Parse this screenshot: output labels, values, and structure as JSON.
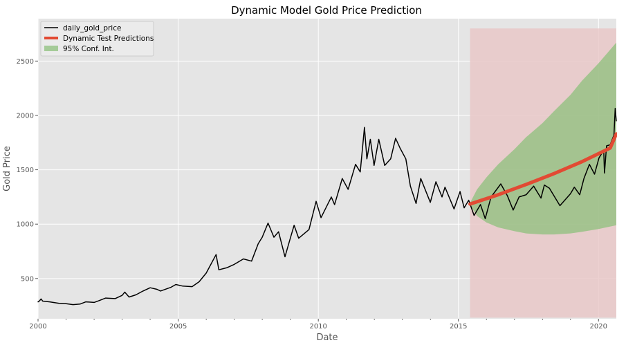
{
  "chart_data": {
    "type": "line",
    "title": "Dynamic Model Gold Price Prediction",
    "xlabel": "Date",
    "ylabel": "Gold Price",
    "xlim": [
      "2000-01-01",
      "2020-08-20"
    ],
    "ylim": [
      130,
      2890
    ],
    "x_ticks": [
      "2000",
      "2005",
      "2010",
      "2015",
      "2020"
    ],
    "y_ticks": [
      500,
      1000,
      1500,
      2000,
      2500
    ],
    "grid": true,
    "legend_position": "top-left",
    "series": [
      {
        "name": "daily_gold_price",
        "kind": "line",
        "color": "#000000",
        "points": [
          [
            "2000-01-01",
            285
          ],
          [
            "2000-01-20",
            295
          ],
          [
            "2000-02-10",
            312
          ],
          [
            "2000-03-01",
            292
          ],
          [
            "2000-06-01",
            285
          ],
          [
            "2000-10-01",
            272
          ],
          [
            "2001-01-01",
            268
          ],
          [
            "2001-04-01",
            260
          ],
          [
            "2001-07-01",
            265
          ],
          [
            "2001-09-15",
            285
          ],
          [
            "2002-01-01",
            280
          ],
          [
            "2002-03-01",
            295
          ],
          [
            "2002-06-01",
            320
          ],
          [
            "2002-10-01",
            315
          ],
          [
            "2003-01-01",
            345
          ],
          [
            "2003-02-05",
            375
          ],
          [
            "2003-04-01",
            330
          ],
          [
            "2003-07-01",
            350
          ],
          [
            "2003-10-01",
            385
          ],
          [
            "2004-01-01",
            415
          ],
          [
            "2004-04-01",
            400
          ],
          [
            "2004-05-15",
            385
          ],
          [
            "2004-10-01",
            420
          ],
          [
            "2004-12-01",
            445
          ],
          [
            "2005-03-01",
            430
          ],
          [
            "2005-07-01",
            425
          ],
          [
            "2005-10-01",
            470
          ],
          [
            "2006-01-01",
            550
          ],
          [
            "2006-05-10",
            720
          ],
          [
            "2006-06-15",
            580
          ],
          [
            "2006-10-01",
            600
          ],
          [
            "2007-01-01",
            630
          ],
          [
            "2007-05-01",
            680
          ],
          [
            "2007-08-15",
            660
          ],
          [
            "2007-11-10",
            820
          ],
          [
            "2008-01-01",
            880
          ],
          [
            "2008-03-17",
            1010
          ],
          [
            "2008-06-01",
            880
          ],
          [
            "2008-08-01",
            930
          ],
          [
            "2008-10-24",
            700
          ],
          [
            "2009-01-01",
            870
          ],
          [
            "2009-02-20",
            990
          ],
          [
            "2009-04-20",
            870
          ],
          [
            "2009-09-01",
            950
          ],
          [
            "2009-12-03",
            1210
          ],
          [
            "2010-02-05",
            1060
          ],
          [
            "2010-06-20",
            1250
          ],
          [
            "2010-08-01",
            1180
          ],
          [
            "2010-11-09",
            1420
          ],
          [
            "2011-01-25",
            1320
          ],
          [
            "2011-05-01",
            1550
          ],
          [
            "2011-07-01",
            1480
          ],
          [
            "2011-08-25",
            1890
          ],
          [
            "2011-09-26",
            1600
          ],
          [
            "2011-11-10",
            1780
          ],
          [
            "2011-12-29",
            1540
          ],
          [
            "2012-02-28",
            1780
          ],
          [
            "2012-05-16",
            1540
          ],
          [
            "2012-08-01",
            1600
          ],
          [
            "2012-10-04",
            1790
          ],
          [
            "2012-12-01",
            1700
          ],
          [
            "2013-02-15",
            1600
          ],
          [
            "2013-04-15",
            1350
          ],
          [
            "2013-06-28",
            1190
          ],
          [
            "2013-08-28",
            1420
          ],
          [
            "2013-12-31",
            1200
          ],
          [
            "2014-03-14",
            1390
          ],
          [
            "2014-06-01",
            1250
          ],
          [
            "2014-07-10",
            1340
          ],
          [
            "2014-11-05",
            1140
          ],
          [
            "2015-01-22",
            1300
          ],
          [
            "2015-03-17",
            1150
          ],
          [
            "2015-05-15",
            1220
          ],
          [
            "2015-07-24",
            1080
          ],
          [
            "2015-10-15",
            1180
          ],
          [
            "2015-12-17",
            1050
          ],
          [
            "2016-03-01",
            1250
          ],
          [
            "2016-07-06",
            1370
          ],
          [
            "2016-10-01",
            1260
          ],
          [
            "2016-12-15",
            1130
          ],
          [
            "2017-03-01",
            1250
          ],
          [
            "2017-06-01",
            1270
          ],
          [
            "2017-09-08",
            1350
          ],
          [
            "2017-12-12",
            1240
          ],
          [
            "2018-01-25",
            1360
          ],
          [
            "2018-04-01",
            1330
          ],
          [
            "2018-08-16",
            1170
          ],
          [
            "2018-12-31",
            1280
          ],
          [
            "2019-02-20",
            1340
          ],
          [
            "2019-05-01",
            1270
          ],
          [
            "2019-06-25",
            1420
          ],
          [
            "2019-09-04",
            1550
          ],
          [
            "2019-11-10",
            1460
          ],
          [
            "2020-01-08",
            1610
          ],
          [
            "2020-03-09",
            1680
          ],
          [
            "2020-03-19",
            1470
          ],
          [
            "2020-04-15",
            1720
          ],
          [
            "2020-06-01",
            1730
          ],
          [
            "2020-07-20",
            1820
          ],
          [
            "2020-08-06",
            2065
          ],
          [
            "2020-08-20",
            1950
          ]
        ]
      },
      {
        "name": "Dynamic Test Predictions",
        "kind": "line",
        "color": "#e24a33",
        "points": [
          [
            "2015-06-01",
            1185
          ],
          [
            "2016-06-01",
            1270
          ],
          [
            "2017-06-01",
            1365
          ],
          [
            "2018-06-01",
            1465
          ],
          [
            "2019-06-01",
            1575
          ],
          [
            "2020-06-01",
            1700
          ],
          [
            "2020-08-20",
            1830
          ]
        ]
      },
      {
        "name": "95% Conf. Int.",
        "kind": "band",
        "color": "#8ec07c",
        "upper": [
          [
            "2015-06-01",
            1195
          ],
          [
            "2015-09-01",
            1320
          ],
          [
            "2016-01-01",
            1430
          ],
          [
            "2016-06-01",
            1550
          ],
          [
            "2017-01-01",
            1690
          ],
          [
            "2017-06-01",
            1800
          ],
          [
            "2018-01-01",
            1930
          ],
          [
            "2018-06-01",
            2040
          ],
          [
            "2019-01-01",
            2190
          ],
          [
            "2019-06-01",
            2320
          ],
          [
            "2020-01-01",
            2480
          ],
          [
            "2020-08-20",
            2670
          ]
        ],
        "lower": [
          [
            "2015-06-01",
            1175
          ],
          [
            "2015-09-01",
            1075
          ],
          [
            "2016-01-01",
            1015
          ],
          [
            "2016-06-01",
            970
          ],
          [
            "2017-01-01",
            935
          ],
          [
            "2017-06-01",
            915
          ],
          [
            "2018-01-01",
            905
          ],
          [
            "2018-06-01",
            905
          ],
          [
            "2019-01-01",
            915
          ],
          [
            "2019-06-01",
            930
          ],
          [
            "2020-01-01",
            955
          ],
          [
            "2020-08-20",
            990
          ]
        ]
      }
    ],
    "shaded_region": {
      "color": "#e8c6c6",
      "x_start": "2015-06-01",
      "x_end": "2020-08-20",
      "y_min": 140,
      "y_max": 2800
    }
  }
}
